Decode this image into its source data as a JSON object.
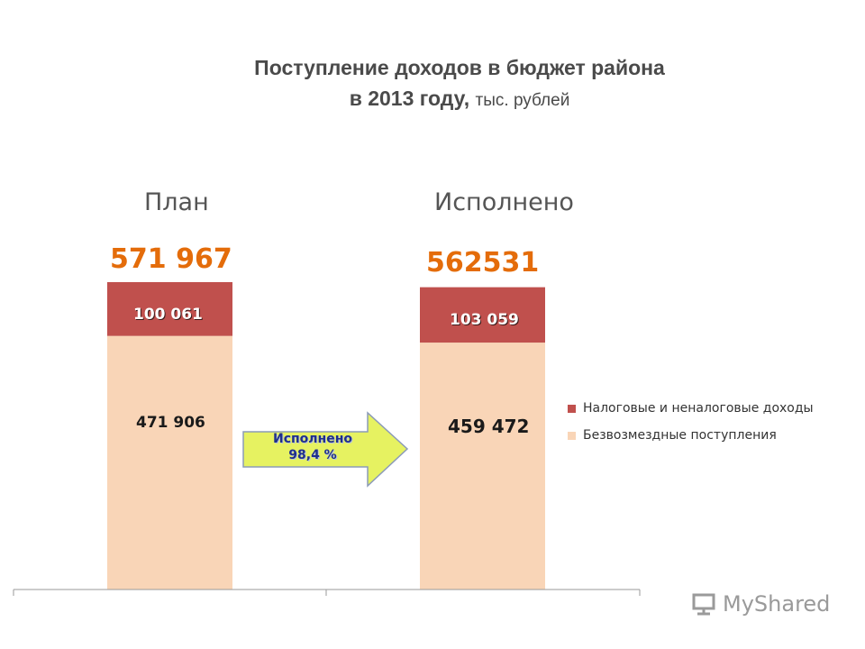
{
  "title": {
    "line1": "Поступление доходов в бюджет района",
    "line2_bold": "в 2013 году,",
    "line2_unit": "тыс. рублей"
  },
  "chart_data": {
    "type": "bar",
    "stacked": true,
    "categories": [
      "План",
      "Исполнено"
    ],
    "series": [
      {
        "name": "Безвозмездные поступления",
        "values": [
          471906,
          459472
        ],
        "labels": [
          "471 906",
          "459 472"
        ],
        "color": "#f9d5b7"
      },
      {
        "name": "Налоговые и неналоговые доходы",
        "values": [
          100061,
          103059
        ],
        "labels": [
          "100 061",
          "103 059"
        ],
        "color": "#c0504d"
      }
    ],
    "totals": [
      "571 967",
      "562531"
    ],
    "total_color": "#e46c0a",
    "ylim": [
      0,
      571967
    ],
    "legend_position": "right"
  },
  "arrow": {
    "line1": "Исполнено",
    "line2": "98,4 %",
    "fill": "#e6f261",
    "stroke": "#8c9bb8"
  },
  "legend": {
    "items": [
      {
        "label": "Налоговые и неналоговые доходы",
        "color": "#c0504d"
      },
      {
        "label": "Безвозмездные поступления",
        "color": "#f9d5b7"
      }
    ]
  },
  "watermark": {
    "text": "MyShared"
  }
}
